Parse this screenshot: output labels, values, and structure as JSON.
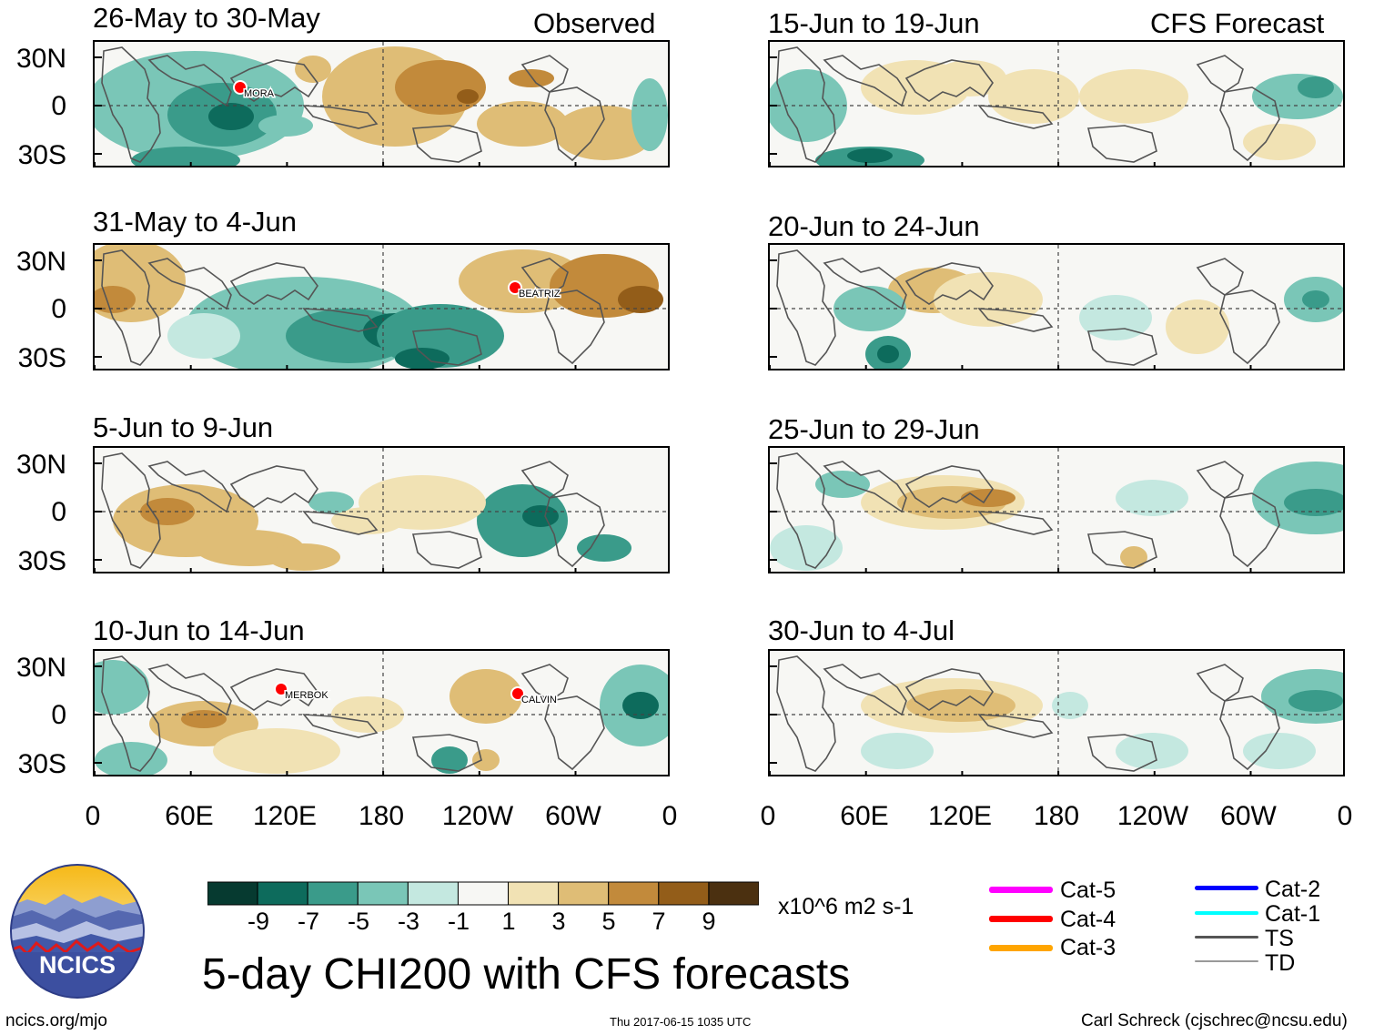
{
  "headers": {
    "left": "Observed",
    "right": "CFS Forecast"
  },
  "panels": {
    "observed": [
      {
        "title": "26-May to 30-May",
        "storms": [
          {
            "name": "MORA",
            "category": "Cat-4"
          }
        ]
      },
      {
        "title": "31-May to 4-Jun",
        "storms": [
          {
            "name": "BEATRIZ",
            "category": "Cat-4"
          }
        ]
      },
      {
        "title": "5-Jun to 9-Jun",
        "storms": []
      },
      {
        "title": "10-Jun to 14-Jun",
        "storms": [
          {
            "name": "MERBOK",
            "category": "Cat-4"
          },
          {
            "name": "CALVIN",
            "category": "Cat-4"
          }
        ]
      }
    ],
    "forecast": [
      {
        "title": "15-Jun to 19-Jun"
      },
      {
        "title": "20-Jun to 24-Jun"
      },
      {
        "title": "25-Jun to 29-Jun"
      },
      {
        "title": "30-Jun to 4-Jul"
      }
    ]
  },
  "lat_labels": [
    "30N",
    "0",
    "30S"
  ],
  "lon_labels": [
    "0",
    "60E",
    "120E",
    "180",
    "120W",
    "60W",
    "0"
  ],
  "colorbar": {
    "labels": [
      "-9",
      "-7",
      "-5",
      "-3",
      "-1",
      "1",
      "3",
      "5",
      "7",
      "9"
    ],
    "colors": [
      "#063a30",
      "#0d6b5c",
      "#3a9b8a",
      "#7ac6b7",
      "#c4e8e0",
      "#f7f7f4",
      "#f1e2b4",
      "#dfbd76",
      "#c28a3b",
      "#935d19",
      "#4b3010"
    ],
    "units": "x10^6 m2 s-1"
  },
  "legend": {
    "categories": [
      {
        "label": "Cat-5",
        "color": "#ff00ff"
      },
      {
        "label": "Cat-4",
        "color": "#ff0000"
      },
      {
        "label": "Cat-3",
        "color": "#ffa500"
      },
      {
        "label": "Cat-2",
        "color": "#0000ff"
      },
      {
        "label": "Cat-1",
        "color": "#00ffff"
      },
      {
        "label": "TS",
        "color": "#555555"
      },
      {
        "label": "TD",
        "color": "#999999"
      }
    ]
  },
  "logo": {
    "text": "NCICS"
  },
  "main_title": "5-day CHI200 with CFS forecasts",
  "footer": {
    "left": "ncics.org/mjo",
    "center": "Thu 2017-06-15 1035 UTC",
    "right": "Carl Schreck (cjschrec@ncsu.edu)"
  }
}
